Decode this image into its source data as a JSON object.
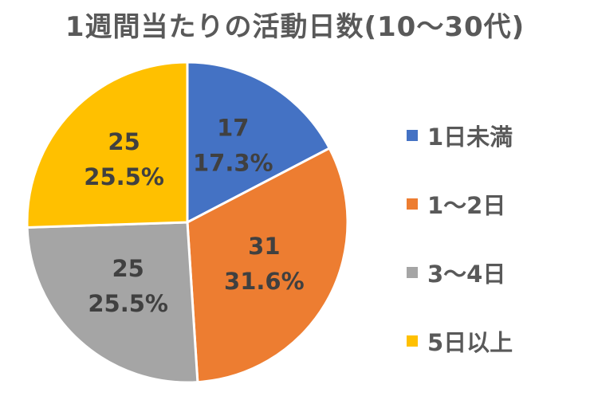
{
  "chart_data": {
    "type": "pie",
    "title": "1週間当たりの活動日数(10～30代)",
    "categories": [
      "1日未満",
      "1～2日",
      "3～4日",
      "5日以上"
    ],
    "values": [
      17,
      31,
      25,
      25
    ],
    "percent_labels": [
      "17.3%",
      "31.6%",
      "25.5%",
      "25.5%"
    ],
    "colors": [
      "#4472C4",
      "#ED7D31",
      "#A5A5A5",
      "#FFC000"
    ],
    "legend_position": "right",
    "start_angle": "12 o'clock",
    "direction": "clockwise"
  }
}
